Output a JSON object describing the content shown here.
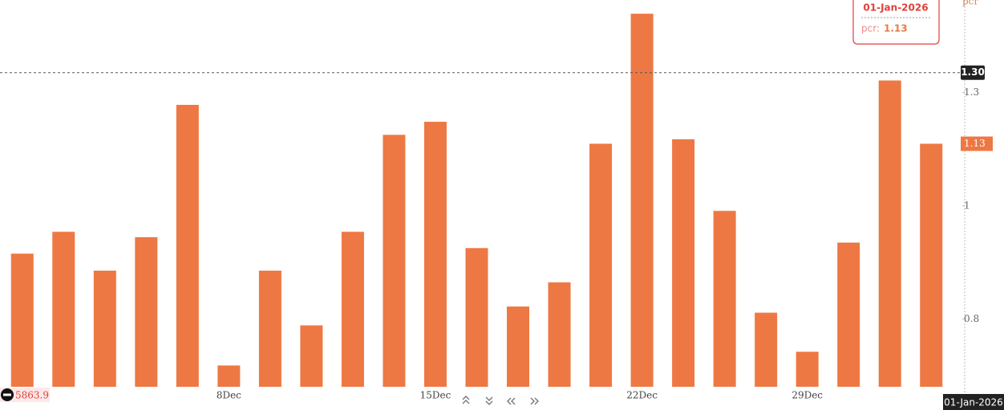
{
  "chart_data": {
    "type": "bar",
    "y_axis_label": "pcr",
    "categories": [
      null,
      null,
      null,
      null,
      null,
      "8Dec",
      null,
      null,
      null,
      null,
      "15Dec",
      null,
      null,
      null,
      null,
      "22Dec",
      null,
      null,
      null,
      "29Dec",
      null,
      null,
      null
    ],
    "values": [
      0.91,
      0.95,
      0.88,
      0.94,
      1.22,
      0.73,
      0.88,
      0.79,
      0.95,
      1.15,
      1.18,
      0.92,
      0.82,
      0.86,
      1.13,
      1.46,
      1.14,
      0.99,
      0.81,
      0.75,
      0.93,
      1.28,
      1.13
    ],
    "color": "#ee7843",
    "ylim": [
      0.7,
      1.5
    ],
    "log_scale": true,
    "yticks": [
      0.8,
      1,
      {
        "value": 1.25,
        "label": "1.3"
      }
    ],
    "crosshair": {
      "value": {
        "value": 1.3,
        "label": "1.30"
      },
      "x_label": "01-Jan-2026"
    },
    "tooltip": {
      "date": "01-Jan-2026",
      "label": "pcr:"
    },
    "footer_value": "5863.9"
  }
}
